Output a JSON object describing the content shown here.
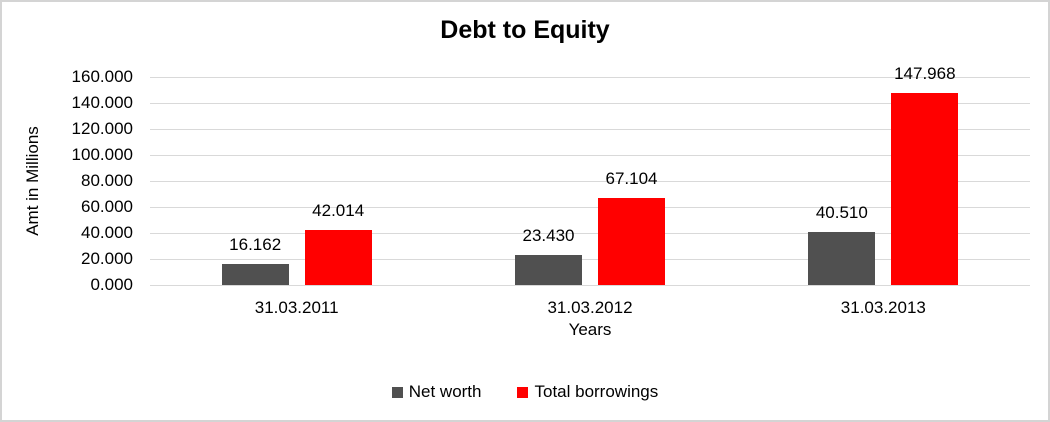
{
  "frame": {
    "background": "#ffffff",
    "border_color": "#d4d4d4"
  },
  "chart_data": {
    "type": "bar",
    "title": "Debt to Equity",
    "xlabel": "Years",
    "ylabel": "Amt in Millions",
    "categories": [
      "31.03.2011",
      "31.03.2012",
      "31.03.2013"
    ],
    "series": [
      {
        "name": "Net worth",
        "color": "#505050",
        "values": [
          16.162,
          23.43,
          40.51
        ],
        "labels": [
          "16.162",
          "23.430",
          "40.510"
        ]
      },
      {
        "name": "Total borrowings",
        "color": "#ff0000",
        "values": [
          42.014,
          67.104,
          147.968
        ],
        "labels": [
          "42.014",
          "67.104",
          "147.968"
        ]
      }
    ],
    "ylim": [
      0,
      160
    ],
    "y_ticks": [
      "0.000",
      "20.000",
      "40.000",
      "60.000",
      "80.000",
      "100.000",
      "120.000",
      "140.000",
      "160.000"
    ],
    "grid": "horizontal",
    "gridline_color": "#d9d9d9",
    "legend_position": "bottom"
  }
}
